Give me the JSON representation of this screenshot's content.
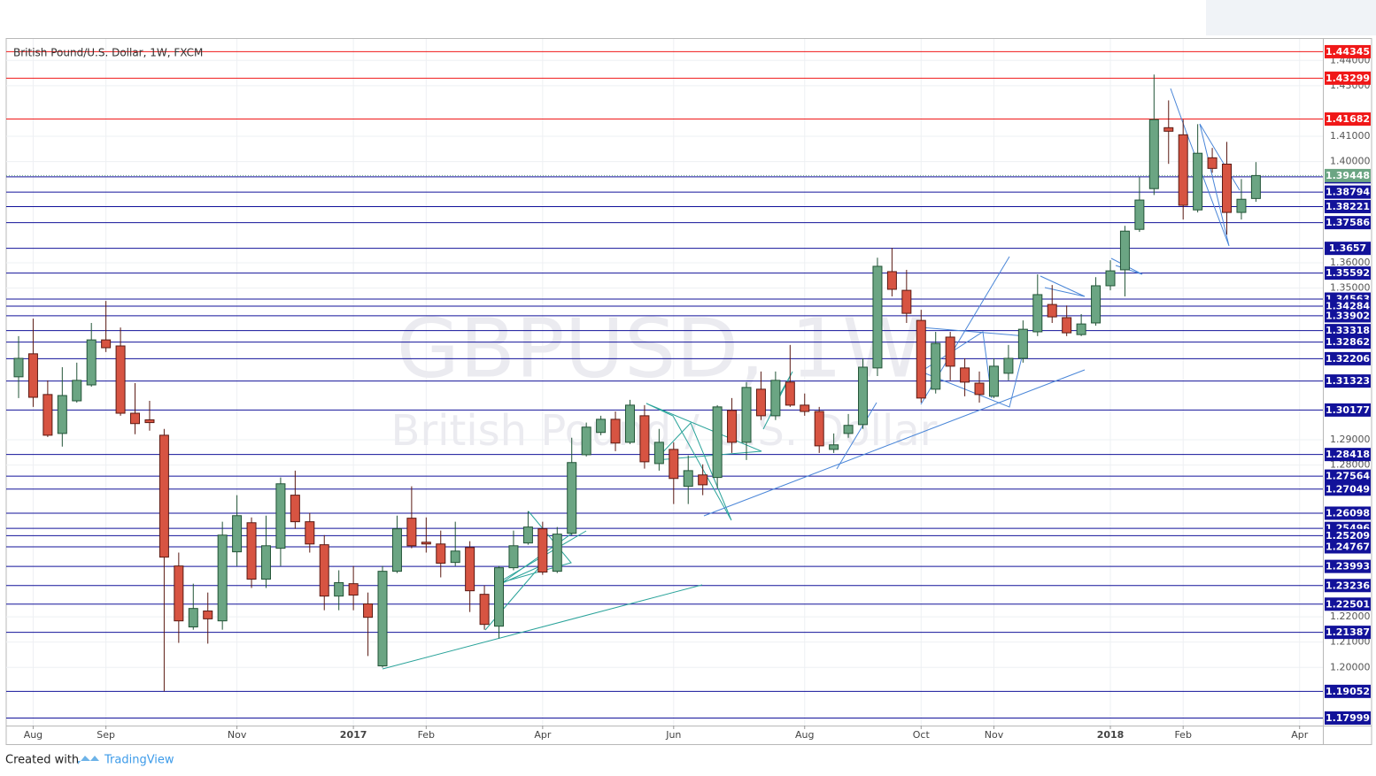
{
  "chart_data": {
    "type": "candlestick",
    "title": "British Pound/U.S. Dollar, 1W, FXCM",
    "watermark": "GBPUSD, 1W",
    "watermark_subtitle": "British Pound / U.S. Dollar",
    "categories": [
      null,
      "Aug",
      null,
      null,
      null,
      null,
      "Sep",
      null,
      null,
      null,
      null,
      null,
      null,
      null,
      null,
      "Nov",
      null,
      null,
      null,
      null,
      null,
      null,
      null,
      "2017",
      null,
      null,
      null,
      null,
      "Feb",
      null,
      null,
      null,
      null,
      null,
      null,
      null,
      "Apr",
      null,
      null,
      null,
      null,
      null,
      null,
      null,
      null,
      "Jun",
      null,
      null,
      null,
      null,
      null,
      null,
      null,
      null,
      "Aug",
      null,
      null,
      null,
      null,
      null,
      null,
      null,
      "Oct",
      null,
      null,
      null,
      null,
      "Nov",
      null,
      null,
      null,
      null,
      null,
      null,
      null,
      "2018",
      null,
      null,
      null,
      null,
      "Feb",
      null,
      null,
      null,
      null,
      null,
      null,
      null,
      "Apr"
    ],
    "open": [
      1.3149,
      1.324,
      1.3079,
      1.2925,
      1.3054,
      1.3117,
      1.3295,
      1.3271,
      1.3005,
      1.2979,
      1.2918,
      1.2401,
      1.216,
      1.2223,
      1.2184,
      1.2457,
      1.2572,
      1.2349,
      1.2471,
      1.2681,
      1.2576,
      1.2485,
      1.2282,
      1.2331,
      1.2251,
      1.2006,
      1.238,
      1.259,
      1.2495,
      1.2488,
      1.2415,
      1.2474,
      1.2289,
      1.2163,
      1.2394,
      1.2492,
      1.2548,
      1.238,
      1.253,
      1.2841,
      1.2929,
      1.2981,
      1.289,
      1.2995,
      1.2806,
      1.2862,
      1.2716,
      1.2761,
      1.2751,
      1.3016,
      1.289,
      1.31,
      1.2995,
      1.3128,
      1.3037,
      1.3012,
      1.2862,
      1.2925,
      1.296,
      1.3184,
      1.3565,
      1.3491,
      1.3372,
      1.31,
      1.3306,
      1.3184,
      1.3124,
      1.3072,
      1.3163,
      1.3222,
      1.3327,
      1.3435,
      1.3383,
      1.3316,
      1.3362,
      1.3509,
      1.3572,
      1.3732,
      1.3893,
      1.4134,
      1.4106,
      1.3809,
      1.4015,
      1.399,
      1.3799,
      1.3854,
      null,
      null,
      null
    ],
    "high": [
      1.331,
      1.3379,
      1.3135,
      1.3187,
      1.3205,
      1.3362,
      1.3449,
      1.3344,
      1.3124,
      1.3054,
      1.2943,
      1.2454,
      1.2331,
      1.2296,
      1.2576,
      1.2681,
      1.2593,
      1.26,
      1.2751,
      1.2778,
      1.2611,
      1.2523,
      1.2384,
      1.2401,
      1.2296,
      1.2401,
      1.26,
      1.2716,
      1.2593,
      1.2541,
      1.2576,
      1.2499,
      1.2324,
      1.2401,
      1.2541,
      1.2618,
      1.2576,
      1.2555,
      1.2908,
      1.2968,
      1.2995,
      1.3012,
      1.3058,
      1.3037,
      1.2943,
      1.289,
      1.2838,
      1.2803,
      1.3037,
      1.3065,
      1.3128,
      1.317,
      1.317,
      1.3275,
      1.3083,
      1.303,
      1.2925,
      1.3002,
      1.3222,
      1.362,
      1.3659,
      1.3572,
      1.3414,
      1.3327,
      1.3327,
      1.3222,
      1.317,
      1.3222,
      1.3275,
      1.3372,
      1.3554,
      1.3512,
      1.3431,
      1.3397,
      1.3543,
      1.361,
      1.3746,
      1.3938,
      1.4344,
      1.4242,
      1.4166,
      1.4148,
      1.4054,
      1.4078,
      1.3931,
      1.3998,
      null,
      null,
      null
    ],
    "low": [
      1.3065,
      1.303,
      1.2911,
      1.2873,
      1.3047,
      1.311,
      1.3247,
      1.2995,
      1.2922,
      1.2936,
      1.1905,
      1.2097,
      1.2149,
      1.2094,
      1.2149,
      1.2401,
      1.2314,
      1.2314,
      1.2401,
      1.2548,
      1.2454,
      1.2226,
      1.2226,
      1.2226,
      1.2045,
      1.1999,
      1.2373,
      1.2471,
      1.2454,
      1.2356,
      1.2401,
      1.2219,
      1.2149,
      1.2115,
      1.2384,
      1.2485,
      1.2366,
      1.2373,
      1.2523,
      1.2834,
      1.2918,
      1.2855,
      1.2883,
      1.2786,
      1.2778,
      1.2646,
      1.2646,
      1.2681,
      1.2709,
      1.2848,
      1.282,
      1.2978,
      1.2978,
      1.303,
      1.2995,
      1.2848,
      1.2848,
      1.2908,
      1.2943,
      1.3152,
      1.3467,
      1.3362,
      1.3047,
      1.3083,
      1.3135,
      1.3072,
      1.3047,
      1.3065,
      1.3135,
      1.3205,
      1.331,
      1.3362,
      1.331,
      1.331,
      1.3351,
      1.3491,
      1.3467,
      1.3722,
      1.3868,
      1.3991,
      1.3771,
      1.3799,
      1.3956,
      1.3711,
      1.3771,
      1.3841,
      null,
      null,
      null
    ],
    "close": [
      1.3222,
      1.3068,
      1.2918,
      1.3075,
      1.3135,
      1.3295,
      1.3264,
      1.3005,
      1.2964,
      1.2968,
      1.2436,
      1.2184,
      1.2233,
      1.2192,
      1.2523,
      1.26,
      1.2349,
      1.2481,
      1.2726,
      1.2576,
      1.2488,
      1.2282,
      1.2335,
      1.2286,
      1.2198,
      1.238,
      1.2548,
      1.2481,
      1.2488,
      1.2412,
      1.246,
      1.2303,
      1.217,
      1.2394,
      1.2481,
      1.2555,
      1.2377,
      1.2527,
      1.281,
      1.295,
      1.2981,
      1.2887,
      1.3037,
      1.2813,
      1.289,
      1.2747,
      1.2778,
      1.2722,
      1.303,
      1.289,
      1.3107,
      1.2995,
      1.3135,
      1.3037,
      1.3012,
      1.2876,
      1.288,
      1.2957,
      1.3187,
      1.3586,
      1.3495,
      1.34,
      1.3065,
      1.3281,
      1.3191,
      1.3128,
      1.3079,
      1.3191,
      1.3222,
      1.3337,
      1.3474,
      1.3386,
      1.3323,
      1.3358,
      1.3509,
      1.3568,
      1.3725,
      1.3848,
      1.4166,
      1.412,
      1.3827,
      1.4033,
      1.3973,
      1.3799,
      1.3851,
      1.39448,
      null,
      null,
      null
    ],
    "up_color": "#6ba583",
    "down_color": "#d75442",
    "up_border": "#225437",
    "down_border": "#5b1a13",
    "last_price_color": "#6ba583",
    "ylim": [
      1.177,
      1.4485
    ],
    "yticks": [
      {
        "value": 1.44,
        "label": "1.44000"
      },
      {
        "value": 1.43,
        "label": "1.43000"
      },
      {
        "value": 1.41,
        "label": "1.41000"
      },
      {
        "value": 1.4,
        "label": "1.40000"
      },
      {
        "value": 1.36,
        "label": "1.36000"
      },
      {
        "value": 1.35,
        "label": "1.35000"
      },
      {
        "value": 1.29,
        "label": "1.29000"
      },
      {
        "value": 1.28,
        "label": "1.28000"
      },
      {
        "value": 1.22,
        "label": "1.22000"
      },
      {
        "value": 1.21,
        "label": "1.21000"
      },
      {
        "value": 1.2,
        "label": "1.20000"
      }
    ],
    "grid": true,
    "levels": [
      {
        "value": 1.44345,
        "color": "#f01818"
      },
      {
        "value": 1.43299,
        "color": "#f01818"
      },
      {
        "value": 1.41682,
        "color": "#f01818"
      },
      {
        "value": 1.39398,
        "color": "#12129a"
      },
      {
        "value": 1.38794,
        "color": "#12129a"
      },
      {
        "value": 1.38221,
        "color": "#12129a"
      },
      {
        "value": 1.37586,
        "color": "#12129a"
      },
      {
        "value": 1.3657,
        "color": "#12129a"
      },
      {
        "value": 1.35592,
        "color": "#12129a"
      },
      {
        "value": 1.34563,
        "color": "#12129a"
      },
      {
        "value": 1.34284,
        "color": "#12129a"
      },
      {
        "value": 1.33902,
        "color": "#12129a"
      },
      {
        "value": 1.33318,
        "color": "#12129a"
      },
      {
        "value": 1.32862,
        "color": "#12129a"
      },
      {
        "value": 1.32206,
        "color": "#12129a"
      },
      {
        "value": 1.31323,
        "color": "#12129a"
      },
      {
        "value": 1.30177,
        "color": "#12129a"
      },
      {
        "value": 1.28418,
        "color": "#12129a"
      },
      {
        "value": 1.27564,
        "color": "#12129a"
      },
      {
        "value": 1.27049,
        "color": "#12129a"
      },
      {
        "value": 1.26098,
        "color": "#12129a"
      },
      {
        "value": 1.25496,
        "color": "#12129a"
      },
      {
        "value": 1.25209,
        "color": "#12129a"
      },
      {
        "value": 1.24767,
        "color": "#12129a"
      },
      {
        "value": 1.23993,
        "color": "#12129a"
      },
      {
        "value": 1.23236,
        "color": "#12129a"
      },
      {
        "value": 1.22501,
        "color": "#12129a"
      },
      {
        "value": 1.21387,
        "color": "#12129a"
      },
      {
        "value": 1.19052,
        "color": "#12129a"
      },
      {
        "value": 1.17999,
        "color": "#12129a"
      }
    ]
  },
  "footer": {
    "text": "Created with",
    "brand": "TradingView"
  }
}
